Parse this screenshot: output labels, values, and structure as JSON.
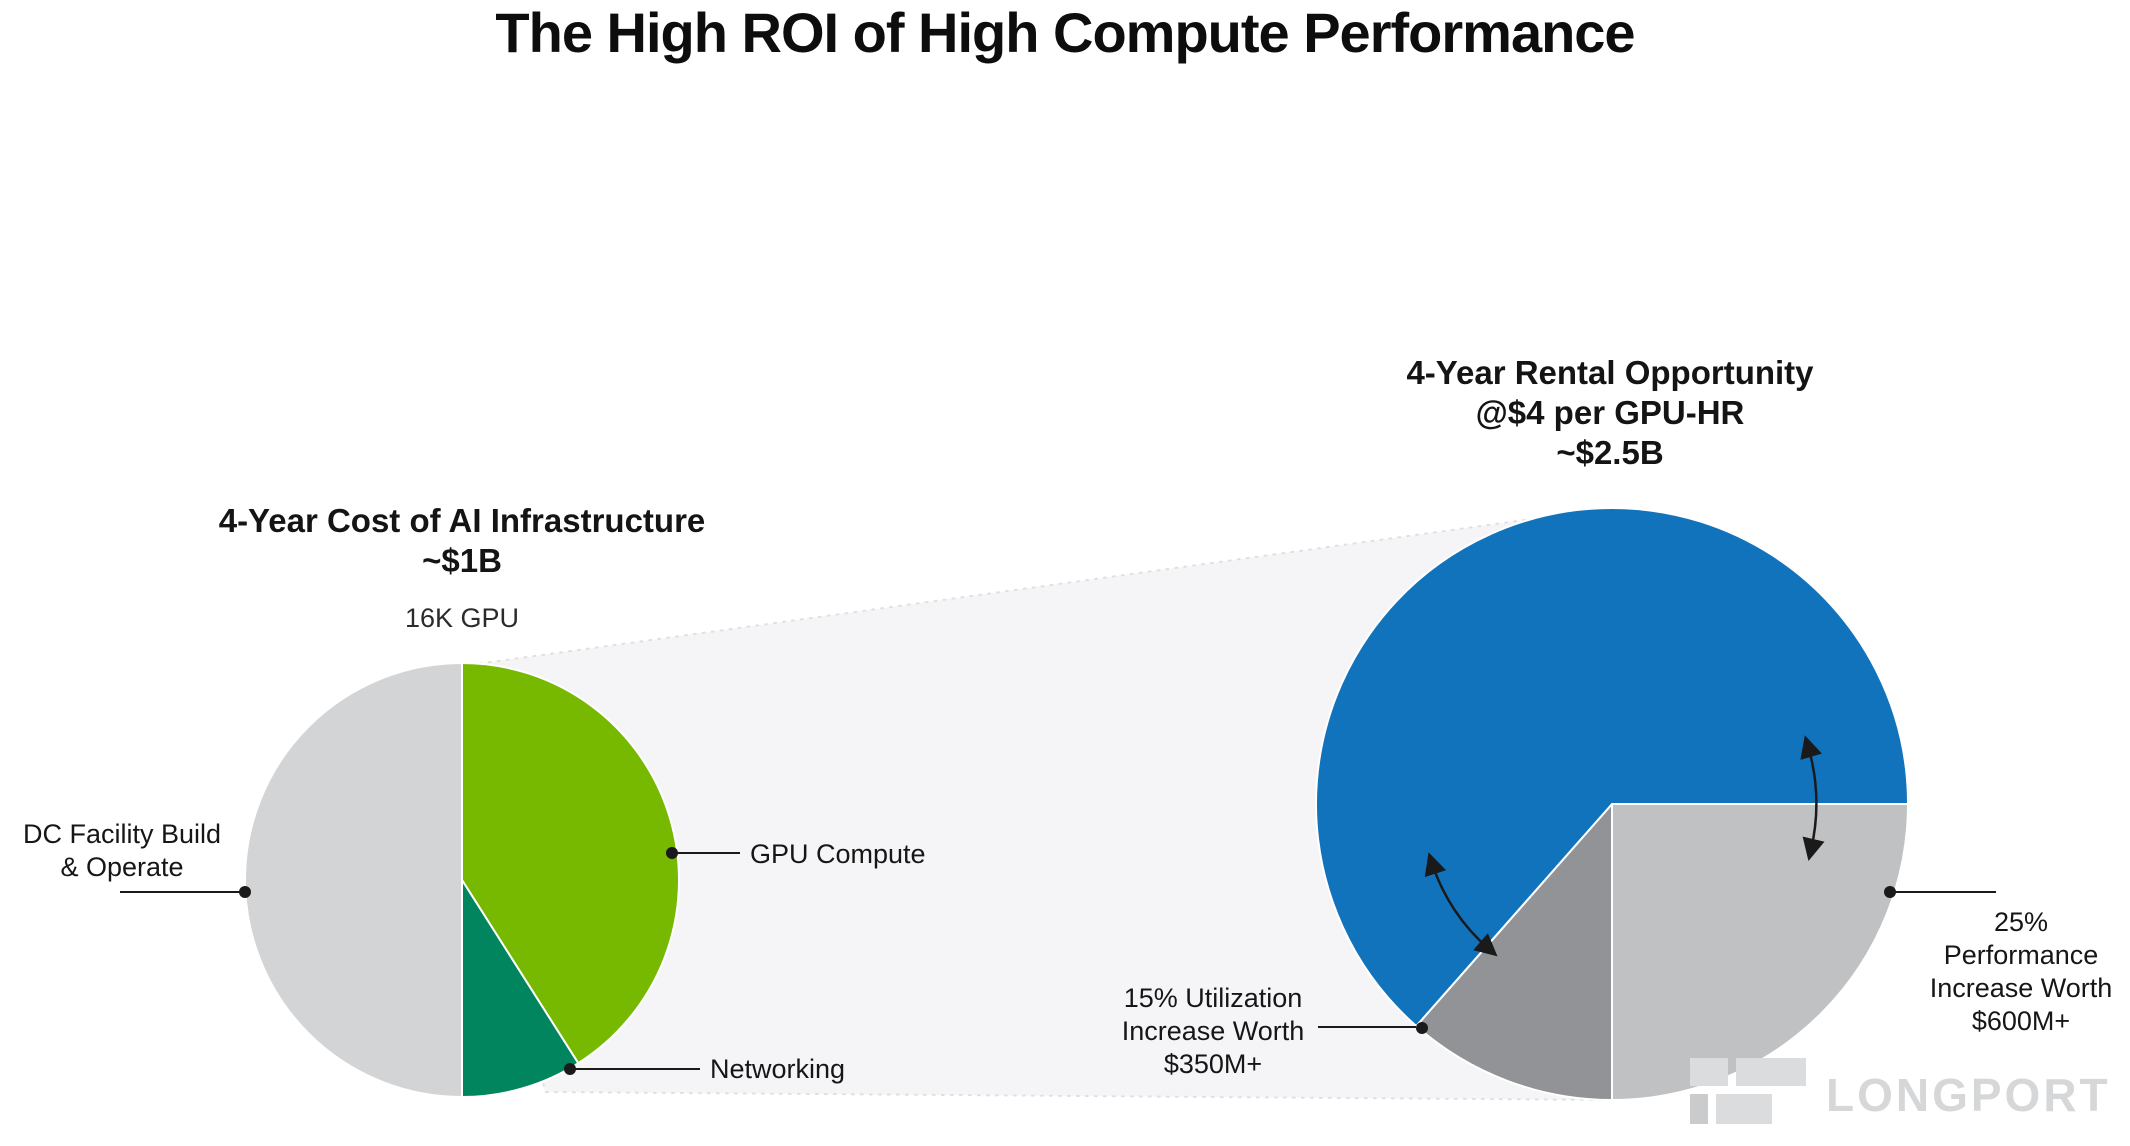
{
  "title": "The High ROI of High Compute Performance",
  "watermark": "LONGPORT",
  "chart_data": [
    {
      "type": "pie",
      "id": "cost-pie",
      "title": "4-Year Cost of AI Infrastructure ~$1B",
      "title_lines": [
        "4-Year Cost of AI Infrastructure",
        "~$1B"
      ],
      "annotation": "16K GPU",
      "start_angle_deg": 0,
      "legend_position": "callouts",
      "slices": [
        {
          "label": "GPU Compute",
          "pct": 41,
          "color": "#76b900"
        },
        {
          "label": "Networking",
          "pct": 9,
          "color": "#00855e"
        },
        {
          "label": "DC Facility Build & Operate",
          "label_lines": [
            "DC Facility Build",
            "& Operate"
          ],
          "pct": 50,
          "color": "#d3d4d6"
        }
      ]
    },
    {
      "type": "pie",
      "id": "rental-pie",
      "title": "4-Year Rental Opportunity @$4 per GPU-HR ~$2.5B",
      "title_lines": [
        "4-Year Rental Opportunity",
        "@$4 per GPU-HR",
        "~$2.5B"
      ],
      "start_angle_deg": 90,
      "legend_position": "callouts",
      "slices": [
        {
          "label": "25% Performance Increase Worth $600M+",
          "label_lines": [
            "25%",
            "Performance",
            "Increase Worth",
            "$600M+"
          ],
          "pct": 25,
          "color": "#bfc1c3"
        },
        {
          "label": "15% Utilization Increase Worth $350M+",
          "label_lines": [
            "15% Utilization",
            "Increase Worth",
            "$350M+"
          ],
          "pct": 11.5,
          "color": "#919396"
        },
        {
          "pct": 63.5,
          "color": "#1273bd"
        }
      ]
    }
  ]
}
